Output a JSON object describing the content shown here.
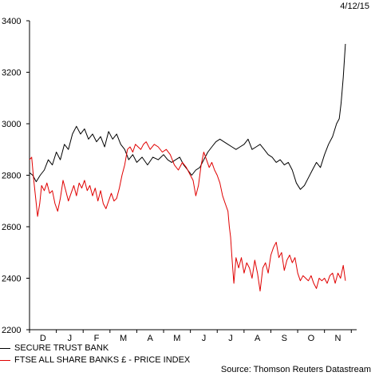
{
  "date_label": "4/12/15",
  "source": "Source: Thomson Reuters Datastream",
  "chart_data": {
    "type": "line",
    "title": "",
    "xlabel": "",
    "ylabel": "",
    "ylim": [
      2200,
      3400
    ],
    "yticks": [
      2200,
      2400,
      2600,
      2800,
      3000,
      3200,
      3400
    ],
    "xlim": [
      0,
      12.2
    ],
    "month_labels": [
      "D",
      "J",
      "F",
      "M",
      "A",
      "M",
      "J",
      "J",
      "A",
      "S",
      "O",
      "N"
    ],
    "grid": false,
    "legend_position": "bottom-left",
    "series": [
      {
        "name": "SECURE TRUST BANK",
        "color": "#000000",
        "points": [
          [
            0.0,
            2810
          ],
          [
            0.12,
            2800
          ],
          [
            0.25,
            2775
          ],
          [
            0.4,
            2800
          ],
          [
            0.55,
            2820
          ],
          [
            0.7,
            2860
          ],
          [
            0.85,
            2840
          ],
          [
            1.0,
            2890
          ],
          [
            1.15,
            2860
          ],
          [
            1.3,
            2920
          ],
          [
            1.45,
            2900
          ],
          [
            1.6,
            2960
          ],
          [
            1.75,
            2990
          ],
          [
            1.9,
            2960
          ],
          [
            2.05,
            2980
          ],
          [
            2.2,
            2940
          ],
          [
            2.35,
            2960
          ],
          [
            2.5,
            2930
          ],
          [
            2.65,
            2950
          ],
          [
            2.8,
            2910
          ],
          [
            2.95,
            2970
          ],
          [
            3.1,
            2940
          ],
          [
            3.25,
            2960
          ],
          [
            3.4,
            2920
          ],
          [
            3.55,
            2900
          ],
          [
            3.7,
            2860
          ],
          [
            3.85,
            2880
          ],
          [
            4.0,
            2850
          ],
          [
            4.2,
            2870
          ],
          [
            4.4,
            2840
          ],
          [
            4.6,
            2870
          ],
          [
            4.8,
            2860
          ],
          [
            5.0,
            2880
          ],
          [
            5.15,
            2860
          ],
          [
            5.3,
            2850
          ],
          [
            5.45,
            2860
          ],
          [
            5.6,
            2870
          ],
          [
            5.75,
            2840
          ],
          [
            5.9,
            2820
          ],
          [
            6.05,
            2800
          ],
          [
            6.2,
            2820
          ],
          [
            6.35,
            2830
          ],
          [
            6.5,
            2860
          ],
          [
            6.65,
            2890
          ],
          [
            6.8,
            2910
          ],
          [
            6.95,
            2930
          ],
          [
            7.1,
            2940
          ],
          [
            7.25,
            2930
          ],
          [
            7.4,
            2920
          ],
          [
            7.55,
            2910
          ],
          [
            7.7,
            2900
          ],
          [
            7.85,
            2910
          ],
          [
            8.0,
            2920
          ],
          [
            8.15,
            2940
          ],
          [
            8.3,
            2900
          ],
          [
            8.45,
            2910
          ],
          [
            8.6,
            2920
          ],
          [
            8.75,
            2900
          ],
          [
            8.9,
            2880
          ],
          [
            9.05,
            2870
          ],
          [
            9.2,
            2850
          ],
          [
            9.35,
            2860
          ],
          [
            9.5,
            2840
          ],
          [
            9.65,
            2850
          ],
          [
            9.8,
            2820
          ],
          [
            9.95,
            2770
          ],
          [
            10.1,
            2745
          ],
          [
            10.25,
            2760
          ],
          [
            10.4,
            2790
          ],
          [
            10.55,
            2820
          ],
          [
            10.7,
            2850
          ],
          [
            10.85,
            2830
          ],
          [
            11.0,
            2880
          ],
          [
            11.15,
            2920
          ],
          [
            11.3,
            2950
          ],
          [
            11.45,
            3000
          ],
          [
            11.55,
            3020
          ],
          [
            11.62,
            3080
          ],
          [
            11.7,
            3180
          ],
          [
            11.78,
            3310
          ]
        ]
      },
      {
        "name": "FTSE ALL SHARE BANKS £ - PRICE INDEX",
        "color": "#e00000",
        "points": [
          [
            0.0,
            2860
          ],
          [
            0.08,
            2870
          ],
          [
            0.15,
            2790
          ],
          [
            0.22,
            2720
          ],
          [
            0.3,
            2640
          ],
          [
            0.38,
            2690
          ],
          [
            0.45,
            2760
          ],
          [
            0.55,
            2740
          ],
          [
            0.65,
            2770
          ],
          [
            0.75,
            2730
          ],
          [
            0.85,
            2740
          ],
          [
            0.95,
            2690
          ],
          [
            1.05,
            2660
          ],
          [
            1.15,
            2710
          ],
          [
            1.25,
            2780
          ],
          [
            1.35,
            2740
          ],
          [
            1.45,
            2700
          ],
          [
            1.55,
            2730
          ],
          [
            1.65,
            2760
          ],
          [
            1.75,
            2720
          ],
          [
            1.85,
            2770
          ],
          [
            1.95,
            2750
          ],
          [
            2.05,
            2780
          ],
          [
            2.15,
            2740
          ],
          [
            2.25,
            2760
          ],
          [
            2.35,
            2720
          ],
          [
            2.45,
            2750
          ],
          [
            2.55,
            2700
          ],
          [
            2.65,
            2740
          ],
          [
            2.75,
            2690
          ],
          [
            2.85,
            2670
          ],
          [
            2.95,
            2700
          ],
          [
            3.05,
            2730
          ],
          [
            3.15,
            2700
          ],
          [
            3.25,
            2710
          ],
          [
            3.35,
            2750
          ],
          [
            3.45,
            2800
          ],
          [
            3.55,
            2840
          ],
          [
            3.65,
            2900
          ],
          [
            3.75,
            2910
          ],
          [
            3.85,
            2890
          ],
          [
            3.95,
            2920
          ],
          [
            4.05,
            2910
          ],
          [
            4.15,
            2900
          ],
          [
            4.25,
            2920
          ],
          [
            4.35,
            2930
          ],
          [
            4.5,
            2900
          ],
          [
            4.65,
            2920
          ],
          [
            4.8,
            2910
          ],
          [
            4.95,
            2890
          ],
          [
            5.1,
            2900
          ],
          [
            5.25,
            2880
          ],
          [
            5.4,
            2840
          ],
          [
            5.55,
            2820
          ],
          [
            5.7,
            2850
          ],
          [
            5.85,
            2830
          ],
          [
            6.0,
            2800
          ],
          [
            6.1,
            2780
          ],
          [
            6.2,
            2720
          ],
          [
            6.3,
            2760
          ],
          [
            6.4,
            2840
          ],
          [
            6.5,
            2890
          ],
          [
            6.6,
            2860
          ],
          [
            6.7,
            2830
          ],
          [
            6.8,
            2850
          ],
          [
            6.9,
            2820
          ],
          [
            7.0,
            2800
          ],
          [
            7.1,
            2770
          ],
          [
            7.2,
            2720
          ],
          [
            7.3,
            2690
          ],
          [
            7.4,
            2660
          ],
          [
            7.45,
            2600
          ],
          [
            7.5,
            2560
          ],
          [
            7.55,
            2480
          ],
          [
            7.62,
            2380
          ],
          [
            7.7,
            2480
          ],
          [
            7.8,
            2440
          ],
          [
            7.9,
            2480
          ],
          [
            8.0,
            2420
          ],
          [
            8.1,
            2460
          ],
          [
            8.2,
            2440
          ],
          [
            8.3,
            2400
          ],
          [
            8.4,
            2470
          ],
          [
            8.5,
            2420
          ],
          [
            8.6,
            2350
          ],
          [
            8.7,
            2440
          ],
          [
            8.8,
            2460
          ],
          [
            8.9,
            2420
          ],
          [
            9.0,
            2490
          ],
          [
            9.1,
            2520
          ],
          [
            9.2,
            2540
          ],
          [
            9.3,
            2480
          ],
          [
            9.4,
            2500
          ],
          [
            9.5,
            2430
          ],
          [
            9.6,
            2470
          ],
          [
            9.7,
            2490
          ],
          [
            9.8,
            2460
          ],
          [
            9.9,
            2480
          ],
          [
            10.0,
            2420
          ],
          [
            10.1,
            2390
          ],
          [
            10.2,
            2410
          ],
          [
            10.3,
            2400
          ],
          [
            10.4,
            2390
          ],
          [
            10.5,
            2410
          ],
          [
            10.6,
            2380
          ],
          [
            10.7,
            2360
          ],
          [
            10.8,
            2400
          ],
          [
            10.9,
            2390
          ],
          [
            11.0,
            2400
          ],
          [
            11.1,
            2380
          ],
          [
            11.2,
            2410
          ],
          [
            11.3,
            2420
          ],
          [
            11.4,
            2380
          ],
          [
            11.5,
            2420
          ],
          [
            11.6,
            2400
          ],
          [
            11.7,
            2450
          ],
          [
            11.78,
            2390
          ]
        ]
      }
    ]
  }
}
